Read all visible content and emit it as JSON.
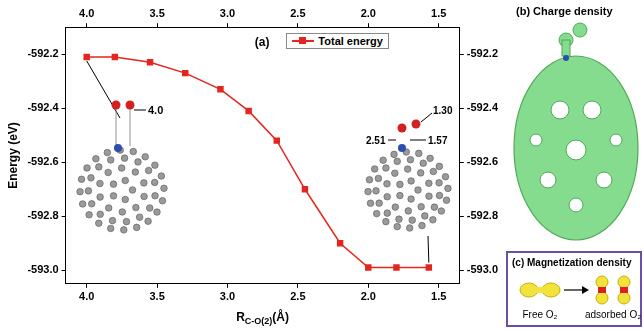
{
  "chart_data": {
    "type": "line",
    "panel_label": "(a)",
    "ylabel": "Energy (eV)",
    "xlabel": {
      "text": "R",
      "subscript": "C-O(2)",
      "unit": "(Å)"
    },
    "x": [
      4.0,
      3.8,
      3.55,
      3.3,
      3.05,
      2.85,
      2.65,
      2.45,
      2.2,
      2.0,
      1.8,
      1.57
    ],
    "series": [
      {
        "name": "Total energy",
        "color": "#e3261f",
        "marker": "square",
        "line_style": "solid",
        "values": [
          -592.21,
          -592.21,
          -592.23,
          -592.27,
          -592.33,
          -592.41,
          -592.52,
          -592.7,
          -592.9,
          -592.99,
          -592.99,
          -592.99
        ]
      }
    ],
    "xlim": [
      4.15,
      1.35
    ],
    "xticks": [
      {
        "value": 4,
        "label": "4.0"
      },
      3.5,
      {
        "value": 3,
        "label": "3.0"
      },
      2.5,
      {
        "value": 2,
        "label": "2.0"
      },
      1.5
    ],
    "ylim": [
      -593.05,
      -592.1
    ],
    "yticks": [
      -592.2,
      -592.4,
      -592.6,
      -592.8,
      {
        "value": -593,
        "label": "-593.0"
      }
    ],
    "grid": false,
    "legend": "top",
    "annotations": {
      "left_inset": [
        "4.0"
      ],
      "right_inset": [
        "1.30",
        "2.51",
        "1.57"
      ]
    }
  },
  "panels": {
    "b": {
      "title": "(b) Charge density"
    },
    "c": {
      "title": "(c) Magnetization density",
      "labels": [
        "Free O₂",
        "adsorbed O₂"
      ]
    }
  }
}
